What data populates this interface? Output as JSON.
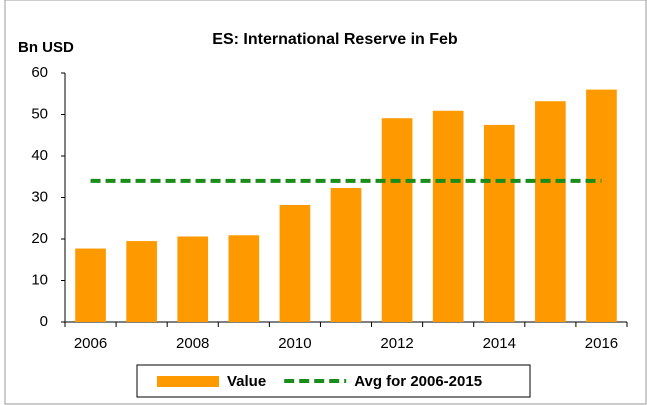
{
  "chart_data": {
    "type": "bar",
    "title": "ES: International Reserve in Feb",
    "y_label": "Bn USD",
    "categories": [
      "2006",
      null,
      "2008",
      null,
      "2010",
      null,
      "2012",
      null,
      "2014",
      null,
      "2016"
    ],
    "series": [
      {
        "name": "Value",
        "type": "bar",
        "color": "#ff9900",
        "values": [
          17.7,
          19.5,
          20.6,
          20.9,
          28.2,
          32.3,
          49.1,
          50.9,
          47.5,
          53.2,
          56.0
        ]
      },
      {
        "name": "Avg for 2006-2015",
        "type": "line",
        "color": "#1a8c1a",
        "dashed": true,
        "values": [
          34,
          34,
          34,
          34,
          34,
          34,
          34,
          34,
          34,
          34,
          34
        ]
      }
    ],
    "ylim": [
      0,
      60
    ],
    "yticks": [
      0,
      10,
      20,
      30,
      40,
      50,
      60
    ],
    "grid": false,
    "legend": "bottom"
  }
}
